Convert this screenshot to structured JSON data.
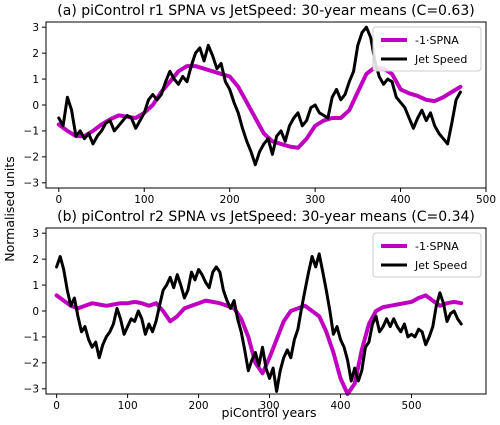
{
  "figure": {
    "ylabel": "Normalised units",
    "xlabel": "piControl years",
    "legend_position": "upper right",
    "colors": {
      "spna": "#c000c0",
      "jet": "#000000"
    }
  },
  "chart_data": [
    {
      "type": "line",
      "title": "(a) piControl r1 SPNA vs JetSpeed: 30-year means (C=0.63)",
      "xlabel": "",
      "ylabel": "Normalised units",
      "xlim": [
        -15,
        500
      ],
      "ylim": [
        -3.2,
        3.2
      ],
      "xticks": [
        0,
        100,
        200,
        300,
        400,
        500
      ],
      "yticks": [
        -3,
        -2,
        -1,
        0,
        1,
        2,
        3
      ],
      "grid": false,
      "legend": "upper right",
      "series": [
        {
          "name": "-1·SPNA",
          "color": "#c000c0",
          "x": [
            0,
            10,
            20,
            30,
            40,
            50,
            60,
            70,
            80,
            90,
            100,
            110,
            120,
            130,
            140,
            150,
            160,
            170,
            180,
            190,
            200,
            210,
            220,
            230,
            240,
            250,
            260,
            270,
            280,
            290,
            300,
            310,
            320,
            330,
            340,
            350,
            360,
            370,
            380,
            390,
            400,
            410,
            420,
            430,
            440,
            450,
            460,
            470
          ],
          "y": [
            -0.75,
            -1.0,
            -1.2,
            -1.2,
            -1.0,
            -0.75,
            -0.55,
            -0.4,
            -0.45,
            -0.5,
            -0.3,
            0.0,
            0.5,
            0.9,
            1.3,
            1.5,
            1.5,
            1.4,
            1.3,
            1.2,
            1.1,
            0.7,
            0.1,
            -0.5,
            -1.1,
            -1.4,
            -1.5,
            -1.6,
            -1.65,
            -1.3,
            -0.8,
            -0.6,
            -0.5,
            -0.5,
            -0.2,
            0.5,
            1.2,
            1.45,
            1.4,
            1.2,
            0.6,
            0.45,
            0.35,
            0.2,
            0.15,
            0.3,
            0.5,
            0.7
          ]
        },
        {
          "name": "Jet Speed",
          "color": "#000000",
          "x": [
            0,
            5,
            10,
            15,
            20,
            25,
            30,
            35,
            40,
            45,
            50,
            55,
            60,
            65,
            70,
            75,
            80,
            85,
            90,
            95,
            100,
            105,
            110,
            115,
            120,
            125,
            130,
            135,
            140,
            145,
            150,
            155,
            160,
            165,
            170,
            175,
            180,
            185,
            190,
            195,
            200,
            205,
            210,
            215,
            220,
            225,
            230,
            235,
            240,
            245,
            250,
            255,
            260,
            265,
            270,
            275,
            280,
            285,
            290,
            295,
            300,
            305,
            310,
            315,
            320,
            325,
            330,
            335,
            340,
            345,
            350,
            355,
            360,
            365,
            370,
            375,
            380,
            385,
            390,
            395,
            400,
            405,
            410,
            415,
            420,
            425,
            430,
            435,
            440,
            445,
            450,
            455,
            460,
            465,
            470
          ],
          "y": [
            -0.5,
            -0.8,
            0.3,
            -0.2,
            -1.2,
            -1.0,
            -1.3,
            -1.1,
            -1.5,
            -1.2,
            -1.0,
            -0.7,
            -0.6,
            -1.0,
            -0.8,
            -0.6,
            -0.4,
            -0.5,
            -0.9,
            -0.6,
            -0.3,
            0.2,
            0.4,
            0.2,
            0.4,
            0.9,
            1.3,
            1.0,
            0.8,
            1.1,
            0.9,
            1.5,
            2.0,
            2.2,
            1.7,
            2.3,
            1.9,
            1.4,
            1.6,
            0.9,
            0.6,
            0.1,
            -0.3,
            -0.9,
            -1.4,
            -1.8,
            -2.3,
            -1.8,
            -1.5,
            -1.3,
            -1.9,
            -1.2,
            -1.0,
            -1.4,
            -0.8,
            -0.5,
            -0.3,
            -0.8,
            -0.6,
            -0.1,
            0.0,
            -0.3,
            -0.4,
            -0.5,
            0.3,
            0.6,
            0.2,
            0.4,
            0.9,
            1.3,
            2.3,
            2.8,
            3.0,
            2.6,
            1.7,
            1.1,
            0.8,
            1.0,
            0.9,
            0.3,
            0.1,
            -0.1,
            -0.5,
            -0.9,
            -0.5,
            -0.2,
            -0.6,
            -0.3,
            -0.8,
            -1.1,
            -1.3,
            -1.5,
            -0.7,
            0.2,
            0.5
          ]
        }
      ]
    },
    {
      "type": "line",
      "title": "(b) piControl r2 SPNA vs JetSpeed: 30-year means (C=0.34)",
      "xlabel": "piControl years",
      "ylabel": "Normalised units",
      "xlim": [
        -15,
        605
      ],
      "ylim": [
        -3.2,
        3.2
      ],
      "xticks": [
        0,
        100,
        200,
        300,
        400,
        500
      ],
      "yticks": [
        -3,
        -2,
        -1,
        0,
        1,
        2,
        3
      ],
      "grid": false,
      "legend": "upper right",
      "series": [
        {
          "name": "-1·SPNA",
          "color": "#c000c0",
          "x": [
            0,
            10,
            20,
            30,
            40,
            50,
            60,
            70,
            80,
            90,
            100,
            110,
            120,
            130,
            140,
            150,
            160,
            170,
            180,
            190,
            200,
            210,
            220,
            230,
            240,
            250,
            260,
            270,
            280,
            290,
            300,
            310,
            320,
            330,
            340,
            350,
            360,
            370,
            380,
            390,
            400,
            410,
            420,
            430,
            440,
            450,
            460,
            470,
            480,
            490,
            500,
            510,
            520,
            530,
            540,
            550,
            560,
            570
          ],
          "y": [
            0.6,
            0.4,
            0.2,
            0.1,
            0.2,
            0.3,
            0.25,
            0.2,
            0.25,
            0.3,
            0.3,
            0.35,
            0.3,
            0.2,
            0.3,
            0.0,
            -0.4,
            -0.2,
            0.1,
            0.2,
            0.3,
            0.4,
            0.35,
            0.3,
            0.2,
            0.1,
            -0.3,
            -1.0,
            -2.0,
            -2.4,
            -1.8,
            -1.1,
            -0.4,
            0.0,
            0.1,
            0.2,
            0.0,
            -0.2,
            -0.8,
            -1.6,
            -2.6,
            -3.2,
            -2.8,
            -1.5,
            -0.5,
            0.0,
            0.15,
            0.2,
            0.25,
            0.3,
            0.35,
            0.5,
            0.6,
            0.4,
            0.2,
            0.3,
            0.35,
            0.3
          ]
        },
        {
          "name": "Jet Speed",
          "color": "#000000",
          "x": [
            0,
            5,
            10,
            15,
            20,
            25,
            30,
            35,
            40,
            45,
            50,
            55,
            60,
            65,
            70,
            75,
            80,
            85,
            90,
            95,
            100,
            105,
            110,
            115,
            120,
            125,
            130,
            135,
            140,
            145,
            150,
            155,
            160,
            165,
            170,
            175,
            180,
            185,
            190,
            195,
            200,
            205,
            210,
            215,
            220,
            225,
            230,
            235,
            240,
            245,
            250,
            255,
            260,
            265,
            270,
            275,
            280,
            285,
            290,
            295,
            300,
            305,
            310,
            315,
            320,
            325,
            330,
            335,
            340,
            345,
            350,
            355,
            360,
            365,
            370,
            375,
            380,
            385,
            390,
            395,
            400,
            405,
            410,
            415,
            420,
            425,
            430,
            435,
            440,
            445,
            450,
            455,
            460,
            465,
            470,
            475,
            480,
            485,
            490,
            495,
            500,
            505,
            510,
            515,
            520,
            525,
            530,
            535,
            540,
            545,
            550,
            555,
            560,
            565,
            570
          ],
          "y": [
            1.7,
            2.1,
            1.6,
            0.8,
            0.2,
            0.5,
            -0.2,
            -0.8,
            -0.6,
            -1.1,
            -1.4,
            -1.2,
            -1.8,
            -1.3,
            -1.0,
            -0.8,
            -0.5,
            0.1,
            -0.3,
            -0.9,
            -0.6,
            -0.3,
            -0.4,
            0.0,
            -0.3,
            -0.9,
            -0.5,
            -0.8,
            -0.4,
            0.2,
            0.8,
            1.0,
            1.3,
            0.9,
            1.4,
            1.0,
            0.5,
            0.8,
            1.5,
            1.2,
            1.6,
            1.4,
            1.1,
            0.9,
            1.5,
            1.7,
            1.5,
            0.8,
            0.4,
            0.1,
            0.4,
            -0.3,
            -0.8,
            -1.5,
            -2.3,
            -1.9,
            -1.6,
            -2.1,
            -1.4,
            -2.2,
            -2.6,
            -2.2,
            -3.1,
            -2.3,
            -1.8,
            -1.5,
            -1.8,
            -1.1,
            -0.7,
            0.1,
            0.8,
            1.5,
            2.1,
            1.7,
            2.2,
            1.5,
            0.8,
            0.0,
            -0.9,
            -0.6,
            -1.1,
            -1.4,
            -1.9,
            -2.7,
            -2.2,
            -2.7,
            -2.3,
            -1.4,
            -1.2,
            -0.5,
            -0.2,
            -0.8,
            -0.6,
            -0.3,
            -0.6,
            -0.3,
            -0.6,
            -0.8,
            -0.5,
            -1.0,
            -0.9,
            -1.0,
            -0.7,
            -0.8,
            -1.3,
            -1.0,
            -0.6,
            0.2,
            0.7,
            0.3,
            -0.4,
            -0.1,
            0.0,
            -0.3,
            -0.5
          ]
        }
      ]
    }
  ]
}
